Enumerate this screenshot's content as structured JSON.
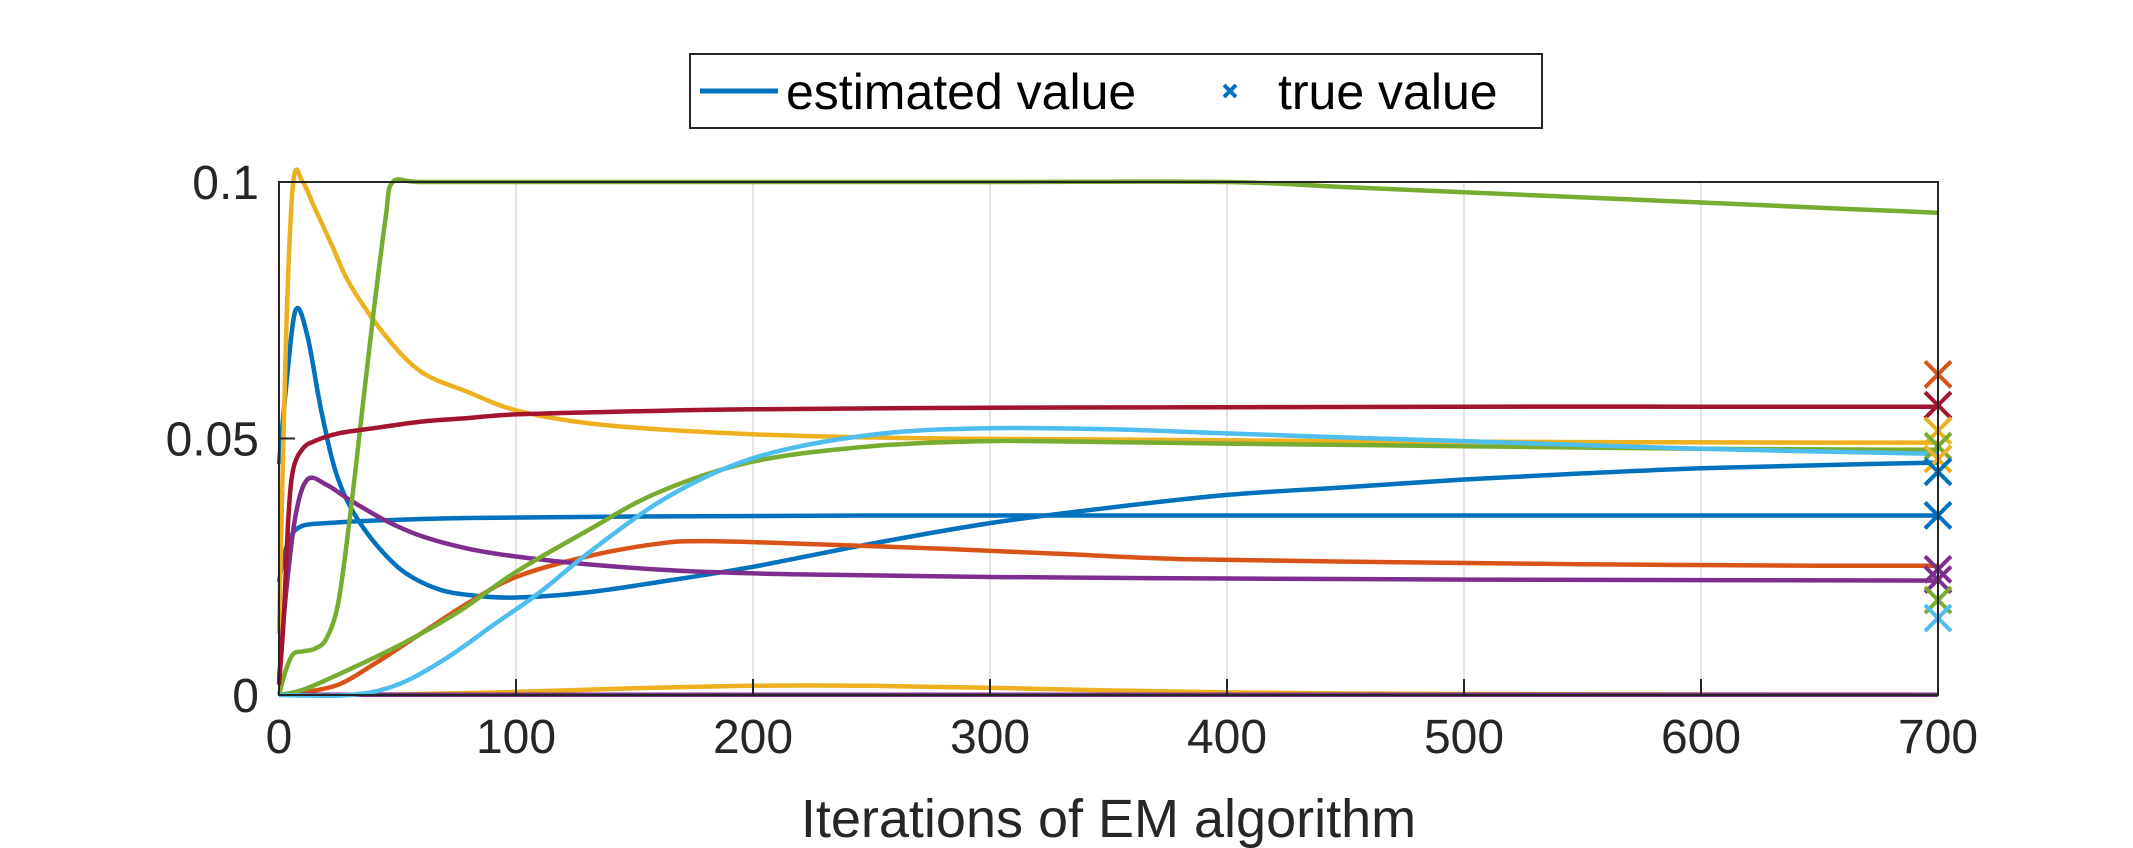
{
  "chart_data": {
    "type": "line",
    "title": "",
    "xlabel": "Iterations of EM algorithm",
    "ylabel": "",
    "xlim": [
      0,
      700
    ],
    "ylim": [
      0,
      0.1
    ],
    "xticks": [
      0,
      100,
      200,
      300,
      400,
      500,
      600,
      700
    ],
    "xtick_labels": [
      "0",
      "100",
      "200",
      "300",
      "400",
      "500",
      "600",
      "700"
    ],
    "yticks": [
      0,
      0.05,
      0.1
    ],
    "ytick_labels": [
      "0",
      "0.05",
      "0.1"
    ],
    "grid": "vertical",
    "legend": {
      "placement": "top-center",
      "entries": [
        {
          "label": "estimated value",
          "marker": "line",
          "color": "#0072BD"
        },
        {
          "label": "true value",
          "marker": "x",
          "color": "#0072BD"
        }
      ]
    },
    "series": [
      {
        "name": "blue-peak",
        "color": "#0072BD",
        "x": [
          0,
          3,
          7,
          12,
          18,
          25,
          35,
          50,
          65,
          80,
          100,
          130,
          160,
          200,
          250,
          300,
          350,
          400,
          450,
          500,
          550,
          600,
          650,
          700
        ],
        "y": [
          0.045,
          0.06,
          0.075,
          0.07,
          0.055,
          0.042,
          0.033,
          0.025,
          0.021,
          0.0195,
          0.019,
          0.02,
          0.022,
          0.025,
          0.0295,
          0.0335,
          0.0365,
          0.039,
          0.0405,
          0.042,
          0.0432,
          0.0442,
          0.0448,
          0.0453
        ]
      },
      {
        "name": "blue-flat",
        "color": "#0072BD",
        "x": [
          0,
          2,
          5,
          10,
          20,
          40,
          80,
          150,
          250,
          400,
          550,
          700
        ],
        "y": [
          0.022,
          0.027,
          0.031,
          0.033,
          0.0335,
          0.034,
          0.0345,
          0.0348,
          0.035,
          0.035,
          0.035,
          0.035
        ]
      },
      {
        "name": "orange",
        "color": "#D95319",
        "x": [
          0,
          10,
          25,
          40,
          60,
          80,
          100,
          130,
          160,
          180,
          220,
          280,
          330,
          380,
          450,
          550,
          650,
          700
        ],
        "y": [
          0,
          0.0005,
          0.002,
          0.006,
          0.012,
          0.018,
          0.023,
          0.027,
          0.0295,
          0.03,
          0.0295,
          0.0285,
          0.0275,
          0.0265,
          0.026,
          0.0255,
          0.0252,
          0.0252
        ]
      },
      {
        "name": "yellow-peak",
        "color": "#EDB120",
        "x": [
          0,
          3,
          6,
          10,
          15,
          22,
          30,
          45,
          60,
          80,
          100,
          130,
          170,
          220,
          280,
          350,
          450,
          550,
          650,
          700
        ],
        "y": [
          0.012,
          0.07,
          0.1,
          0.1,
          0.095,
          0.088,
          0.08,
          0.07,
          0.063,
          0.059,
          0.0555,
          0.053,
          0.0515,
          0.0505,
          0.05,
          0.0498,
          0.0495,
          0.0493,
          0.0492,
          0.0492
        ]
      },
      {
        "name": "yellow-low",
        "color": "#EDB120",
        "x": [
          0,
          50,
          100,
          150,
          200,
          250,
          300,
          350,
          400,
          450,
          500,
          600,
          700
        ],
        "y": [
          0,
          0.0001,
          0.0006,
          0.0013,
          0.0018,
          0.0018,
          0.0014,
          0.0009,
          0.0005,
          0.0003,
          0.0002,
          0.0001,
          5e-05
        ]
      },
      {
        "name": "purple-peak",
        "color": "#7E2F8E",
        "x": [
          0,
          3,
          7,
          12,
          20,
          30,
          45,
          60,
          80,
          100,
          130,
          170,
          220,
          300,
          400,
          500,
          600,
          700
        ],
        "y": [
          0.003,
          0.02,
          0.035,
          0.042,
          0.041,
          0.038,
          0.034,
          0.031,
          0.0285,
          0.027,
          0.0255,
          0.0242,
          0.0235,
          0.023,
          0.0227,
          0.0225,
          0.0224,
          0.0223
        ]
      },
      {
        "name": "purple-zero",
        "color": "#7E2F8E",
        "x": [
          0,
          700
        ],
        "y": [
          5e-05,
          5e-05
        ]
      },
      {
        "name": "green-top",
        "color": "#77AC30",
        "x": [
          0,
          3,
          6,
          10,
          15,
          20,
          25,
          30,
          35,
          40,
          45,
          48,
          60,
          100,
          200,
          300,
          400,
          450,
          500,
          550,
          600,
          650,
          700
        ],
        "y": [
          0,
          0.005,
          0.008,
          0.0085,
          0.009,
          0.011,
          0.018,
          0.035,
          0.055,
          0.075,
          0.093,
          0.1,
          0.1,
          0.1,
          0.1,
          0.1,
          0.1,
          0.099,
          0.098,
          0.097,
          0.096,
          0.095,
          0.094
        ]
      },
      {
        "name": "green-mid",
        "color": "#77AC30",
        "x": [
          0,
          10,
          25,
          50,
          75,
          100,
          130,
          160,
          200,
          250,
          300,
          350,
          400,
          500,
          600,
          700
        ],
        "y": [
          0,
          0.001,
          0.004,
          0.0095,
          0.016,
          0.024,
          0.032,
          0.0395,
          0.0455,
          0.0485,
          0.0495,
          0.0493,
          0.049,
          0.0485,
          0.048,
          0.0478
        ]
      },
      {
        "name": "cyan",
        "color": "#4DBEEE",
        "x": [
          0,
          30,
          50,
          70,
          90,
          110,
          130,
          160,
          190,
          220,
          260,
          300,
          350,
          400,
          450,
          500,
          600,
          700
        ],
        "y": [
          0,
          0,
          0.002,
          0.007,
          0.0135,
          0.02,
          0.0275,
          0.0375,
          0.0445,
          0.0485,
          0.0512,
          0.052,
          0.0518,
          0.051,
          0.0502,
          0.0495,
          0.048,
          0.047
        ]
      },
      {
        "name": "crimson",
        "color": "#A2142F",
        "x": [
          0,
          2,
          4,
          6,
          10,
          15,
          25,
          40,
          60,
          80,
          100,
          150,
          200,
          300,
          400,
          500,
          600,
          700
        ],
        "y": [
          0.002,
          0.015,
          0.035,
          0.044,
          0.048,
          0.0495,
          0.051,
          0.052,
          0.0533,
          0.054,
          0.0547,
          0.0553,
          0.0557,
          0.056,
          0.0561,
          0.0562,
          0.0562,
          0.0562
        ]
      }
    ],
    "true_values": [
      {
        "color": "#D95319",
        "x": 700,
        "y": 0.0625
      },
      {
        "color": "#A2142F",
        "x": 700,
        "y": 0.0565
      },
      {
        "color": "#EDB120",
        "x": 700,
        "y": 0.0515
      },
      {
        "color": "#77AC30",
        "x": 700,
        "y": 0.0485
      },
      {
        "color": "#EDB120",
        "x": 700,
        "y": 0.046
      },
      {
        "color": "#0072BD",
        "x": 700,
        "y": 0.0435
      },
      {
        "color": "#0072BD",
        "x": 700,
        "y": 0.035
      },
      {
        "color": "#7E2F8E",
        "x": 700,
        "y": 0.0245
      },
      {
        "color": "#7E2F8E",
        "x": 700,
        "y": 0.0225
      },
      {
        "color": "#77AC30",
        "x": 700,
        "y": 0.0185
      },
      {
        "color": "#4DBEEE",
        "x": 700,
        "y": 0.015
      }
    ]
  }
}
